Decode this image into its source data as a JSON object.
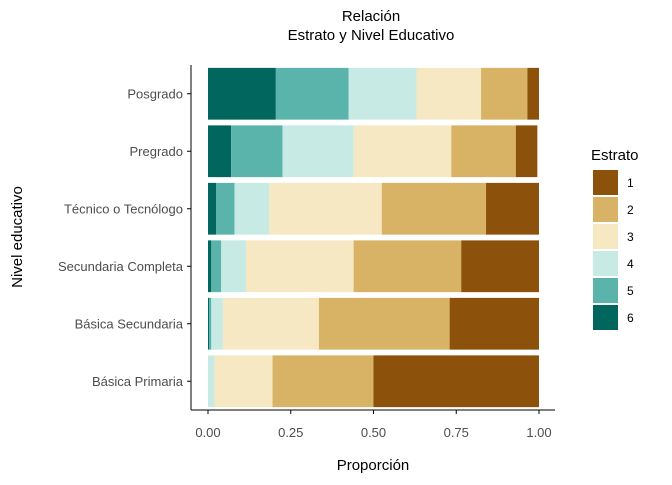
{
  "chart_data": {
    "type": "bar",
    "orientation": "horizontal",
    "stacked": true,
    "title": "Relación",
    "subtitle": "Estrato y Nivel Educativo",
    "xlabel": "Proporción",
    "ylabel": "Nivel educativo",
    "xlim": [
      0,
      1
    ],
    "x_ticks": [
      "0.00",
      "0.25",
      "0.50",
      "0.75",
      "1.00"
    ],
    "grid": false,
    "legend_position": "right",
    "legend_title": "Estrato",
    "categories": [
      "Posgrado",
      "Pregrado",
      "Técnico o Tecnólogo",
      "Secundaria Completa",
      "Básica Secundaria",
      "Básica Primaria"
    ],
    "stack_order": [
      "6",
      "5",
      "4",
      "3",
      "2",
      "1"
    ],
    "series": [
      {
        "name": "1",
        "color": "#8C510A",
        "values": [
          0.035,
          0.065,
          0.16,
          0.235,
          0.27,
          0.5
        ]
      },
      {
        "name": "2",
        "color": "#D8B365",
        "values": [
          0.14,
          0.195,
          0.315,
          0.325,
          0.395,
          0.305
        ]
      },
      {
        "name": "3",
        "color": "#F6E8C3",
        "values": [
          0.195,
          0.295,
          0.34,
          0.325,
          0.29,
          0.175
        ]
      },
      {
        "name": "4",
        "color": "#C7EAE5",
        "values": [
          0.205,
          0.215,
          0.105,
          0.075,
          0.035,
          0.02
        ]
      },
      {
        "name": "5",
        "color": "#5AB4AC",
        "values": [
          0.22,
          0.155,
          0.055,
          0.03,
          0.007,
          0.0
        ]
      },
      {
        "name": "6",
        "color": "#01665E",
        "values": [
          0.205,
          0.07,
          0.025,
          0.01,
          0.003,
          0.0
        ]
      }
    ]
  }
}
